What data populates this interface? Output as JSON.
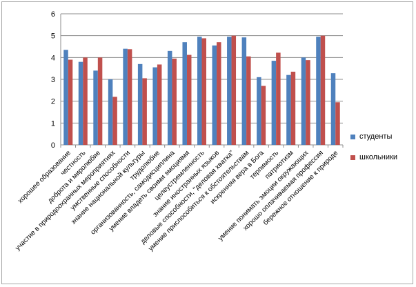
{
  "chart_data": {
    "type": "bar",
    "title": "",
    "xlabel": "",
    "ylabel": "",
    "ylim": [
      0,
      6
    ],
    "yticks": [
      0,
      1,
      2,
      3,
      4,
      5,
      6
    ],
    "grid": true,
    "legend_position": "right",
    "categories": [
      "хорошее образование",
      "честность",
      "доброта и миролюбие",
      "участие в природоохранных мероприятиях",
      "умственные способности",
      "знание национальной культуры",
      "трудолюбие",
      "организованность, самодисциплина",
      "умение владеть своими эмоциями",
      "целеустремленность",
      "знание иностранных языков",
      "деловые способности, \"деловая хватка\"",
      "умение приспособиться к обстоятельствам",
      "искренняя вера в Бога",
      "терпимость",
      "патриотизм",
      "умение понимать эмоции окружающих",
      "хорошо оплачиваемая профессия",
      "бережное отношение  к природе"
    ],
    "series": [
      {
        "name": "студенты",
        "color": "#4f81bd",
        "values": [
          4.35,
          3.8,
          3.4,
          3.0,
          4.4,
          3.7,
          3.55,
          4.3,
          4.7,
          4.95,
          4.55,
          4.95,
          4.92,
          3.1,
          3.85,
          3.2,
          4.0,
          4.95,
          3.28
        ]
      },
      {
        "name": "школьники",
        "color": "#c0504d",
        "values": [
          3.9,
          4.0,
          4.0,
          2.2,
          4.38,
          3.05,
          3.68,
          3.95,
          4.12,
          4.88,
          4.7,
          5.0,
          4.05,
          2.7,
          4.22,
          3.35,
          3.88,
          5.0,
          1.95
        ]
      }
    ]
  }
}
